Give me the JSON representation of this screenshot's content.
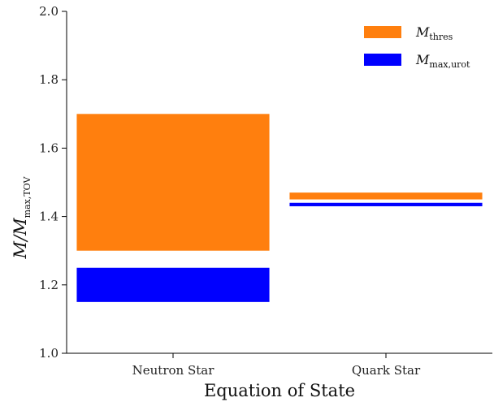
{
  "chart_data": {
    "type": "bar",
    "subtype": "floating-range",
    "xlabel": "Equation of State",
    "ylabel_main": "M/M",
    "ylabel_sub": "max,TOV",
    "ylim": [
      1.0,
      2.0
    ],
    "yticks": [
      "1.0",
      "1.2",
      "1.4",
      "1.6",
      "1.8",
      "2.0"
    ],
    "categories": [
      "Neutron Star",
      "Quark Star"
    ],
    "series": [
      {
        "name_main": "M",
        "name_sub": "thres",
        "color": "#ff7f0e",
        "ranges": [
          [
            1.3,
            1.7
          ],
          [
            1.45,
            1.47
          ]
        ]
      },
      {
        "name_main": "M",
        "name_sub": "max,urot",
        "color": "#0000ff",
        "ranges": [
          [
            1.15,
            1.25
          ],
          [
            1.43,
            1.44
          ]
        ]
      }
    ],
    "grid": false,
    "legend_position": "top-right"
  }
}
